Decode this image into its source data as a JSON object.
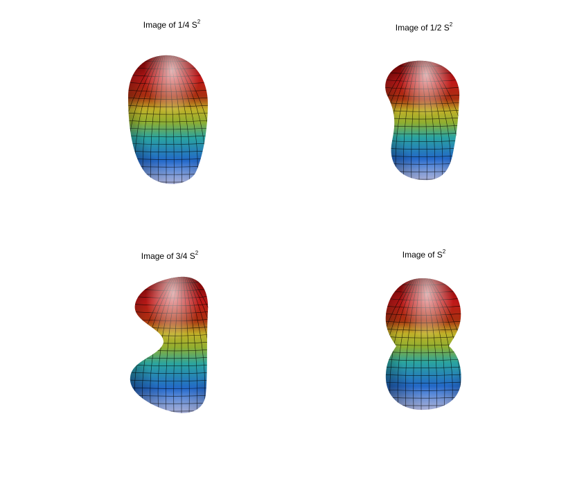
{
  "panels": [
    {
      "title": "Image of 1/4 S",
      "sup": "2"
    },
    {
      "title": "Image of 1/2 S",
      "sup": "2"
    },
    {
      "title": "Image of 3/4 S",
      "sup": "2"
    },
    {
      "title": "Image of S",
      "sup": "2"
    }
  ]
}
